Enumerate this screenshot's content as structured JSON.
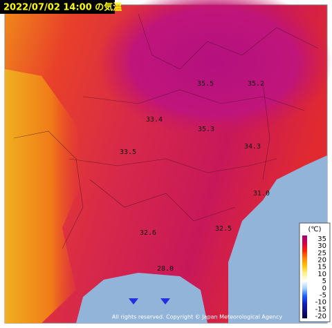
{
  "header": {
    "title": "2022/07/02 14:00 の気温"
  },
  "stations": [
    {
      "label": "35.5"
    },
    {
      "label": "35.2"
    },
    {
      "label": "33.4"
    },
    {
      "label": "35.3"
    },
    {
      "label": "34.3"
    },
    {
      "label": "33.5"
    },
    {
      "label": "31.0"
    },
    {
      "label": "32.5"
    },
    {
      "label": "32.6"
    },
    {
      "label": "28.0"
    }
  ],
  "legend": {
    "unit": "(℃)",
    "ticks": [
      "35",
      "30",
      "25",
      "20",
      "15",
      "10",
      "5",
      "0",
      "-5",
      "-10",
      "-15",
      "-20"
    ]
  },
  "footer": {
    "copyright": "All rights reserved. Copyright © Japan Meteorological Agency"
  }
}
